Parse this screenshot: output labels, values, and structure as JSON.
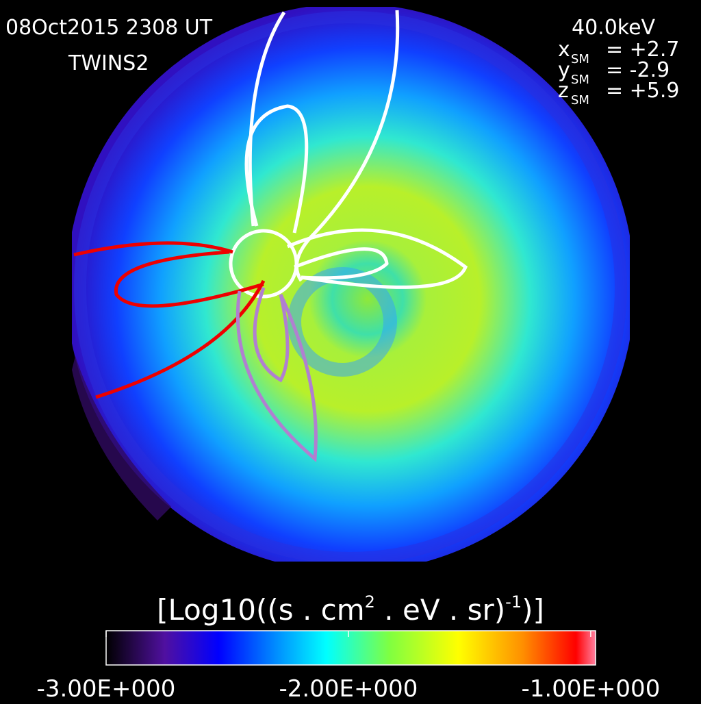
{
  "header": {
    "timestamp": "08Oct2015 2308 UT",
    "spacecraft": "TWINS2",
    "energy": "40.0keV"
  },
  "position": [
    {
      "axis": "x",
      "sub": "SM",
      "value": "= +2.7"
    },
    {
      "axis": "y",
      "sub": "SM",
      "value": "= -2.9"
    },
    {
      "axis": "z",
      "sub": "SM",
      "value": "= +5.9"
    }
  ],
  "colorbar": {
    "label": {
      "part1": "[Log10((s . cm",
      "sup1": "2",
      "part2": " . eV . sr)",
      "sup2": "-1",
      "part3": ")]"
    },
    "lim": [
      -3,
      -0.98
    ],
    "ticks": [
      {
        "value": -3,
        "label": "-3.00E+000"
      },
      {
        "value": -2,
        "label": "-2.00E+000"
      },
      {
        "value": -1,
        "label": "-1.00E+000"
      }
    ]
  }
}
